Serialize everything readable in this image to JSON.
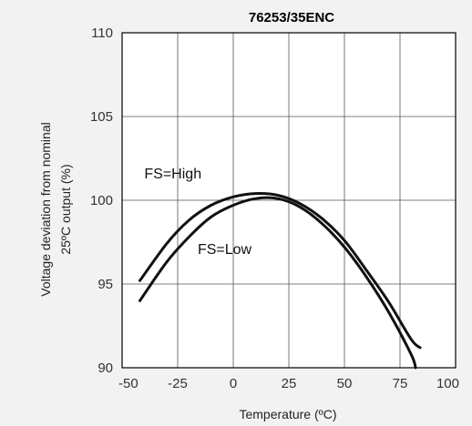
{
  "chart_data": {
    "type": "line",
    "title": "76253/35ENC",
    "xlabel": "Temperature (ºC)",
    "ylabel_lines": [
      "Voltage deviation from nominal",
      "25ºC output (%)"
    ],
    "xlim": [
      -50,
      100
    ],
    "ylim": [
      90,
      110
    ],
    "x_ticks": [
      -50,
      -25,
      0,
      25,
      50,
      75,
      100
    ],
    "y_ticks": [
      90,
      95,
      100,
      105,
      110
    ],
    "grid": true,
    "legend": "none",
    "series": [
      {
        "name": "FS=High",
        "label_at": [
          -40,
          101.3
        ],
        "x": [
          -42,
          -30,
          -20,
          -10,
          0,
          10,
          20,
          30,
          40,
          50,
          60,
          70,
          80,
          84
        ],
        "y": [
          95.2,
          97.4,
          98.8,
          99.7,
          100.2,
          100.4,
          100.3,
          99.8,
          98.9,
          97.6,
          95.8,
          93.9,
          91.7,
          91.2
        ]
      },
      {
        "name": "FS=Low",
        "label_at": [
          -16,
          96.8
        ],
        "x": [
          -42,
          -30,
          -20,
          -10,
          0,
          10,
          20,
          30,
          40,
          50,
          60,
          70,
          80,
          82
        ],
        "y": [
          94.0,
          96.3,
          97.8,
          99.0,
          99.7,
          100.1,
          100.1,
          99.6,
          98.6,
          97.2,
          95.4,
          93.3,
          90.8,
          90.0
        ]
      }
    ]
  }
}
